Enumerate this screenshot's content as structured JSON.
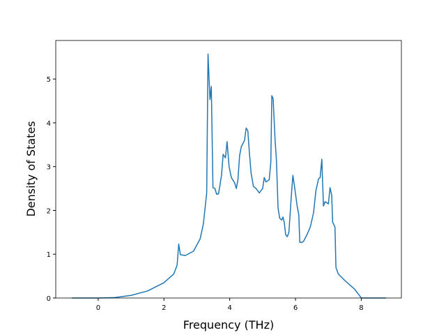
{
  "chart_data": {
    "type": "line",
    "xlabel": "Frequency (THz)",
    "ylabel": "Density of States",
    "xlim": [
      -1.29,
      9.22
    ],
    "ylim": [
      0,
      5.88
    ],
    "xticks": [
      0,
      2,
      4,
      6,
      8
    ],
    "yticks": [
      0,
      1,
      2,
      3,
      4,
      5
    ],
    "grid": false,
    "x": [
      -0.8,
      0,
      0.5,
      1.0,
      1.5,
      2.0,
      2.3,
      2.4,
      2.45,
      2.5,
      2.65,
      2.9,
      3.1,
      3.2,
      3.3,
      3.34,
      3.4,
      3.44,
      3.49,
      3.55,
      3.6,
      3.66,
      3.75,
      3.8,
      3.87,
      3.92,
      3.98,
      4.05,
      4.15,
      4.2,
      4.25,
      4.3,
      4.35,
      4.45,
      4.5,
      4.55,
      4.6,
      4.65,
      4.72,
      4.8,
      4.9,
      5.0,
      5.05,
      5.1,
      5.2,
      5.25,
      5.28,
      5.32,
      5.38,
      5.42,
      5.47,
      5.52,
      5.58,
      5.62,
      5.66,
      5.7,
      5.75,
      5.8,
      5.87,
      5.92,
      5.97,
      6.05,
      6.1,
      6.13,
      6.2,
      6.25,
      6.35,
      6.45,
      6.55,
      6.62,
      6.7,
      6.75,
      6.8,
      6.85,
      6.9,
      7.0,
      7.05,
      7.1,
      7.13,
      7.2,
      7.23,
      7.3,
      7.5,
      7.8,
      7.95,
      8.0,
      8.75
    ],
    "series": [
      {
        "color": "#1f77b4",
        "values": [
          0,
          0,
          0.01,
          0.06,
          0.16,
          0.35,
          0.55,
          0.75,
          1.23,
          0.99,
          0.97,
          1.07,
          1.35,
          1.7,
          2.4,
          5.57,
          4.53,
          4.83,
          2.52,
          2.5,
          2.37,
          2.38,
          2.8,
          3.28,
          3.2,
          3.57,
          3.0,
          2.75,
          2.63,
          2.5,
          2.7,
          3.25,
          3.45,
          3.6,
          3.88,
          3.82,
          3.3,
          2.85,
          2.55,
          2.5,
          2.4,
          2.5,
          2.75,
          2.65,
          2.7,
          3.1,
          4.62,
          4.55,
          3.6,
          3.15,
          2.05,
          1.82,
          1.78,
          1.85,
          1.72,
          1.45,
          1.4,
          1.5,
          2.3,
          2.8,
          2.55,
          2.1,
          1.9,
          1.27,
          1.27,
          1.3,
          1.45,
          1.62,
          1.95,
          2.45,
          2.72,
          2.75,
          3.17,
          2.1,
          2.2,
          2.15,
          2.52,
          2.35,
          1.73,
          1.62,
          0.7,
          0.55,
          0.4,
          0.2,
          0.05,
          0,
          0
        ]
      }
    ]
  }
}
